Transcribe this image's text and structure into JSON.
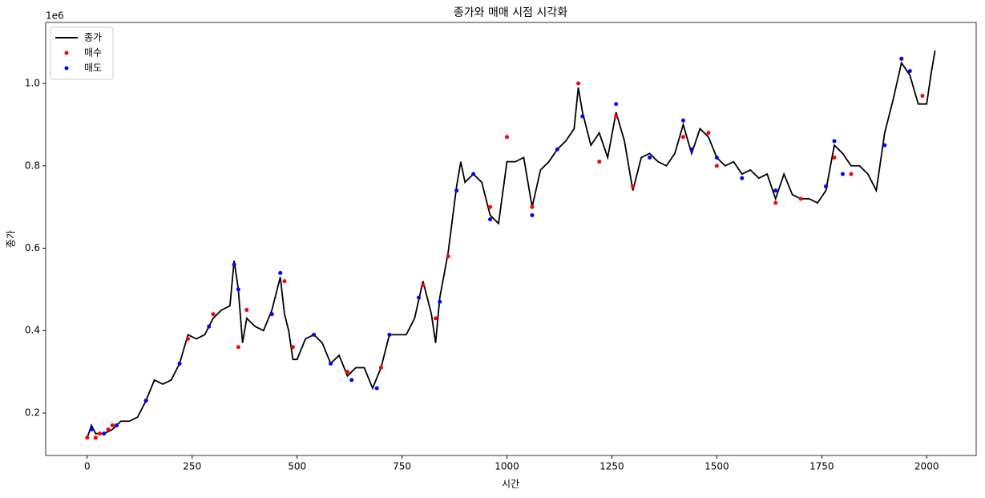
{
  "chart_data": {
    "type": "line",
    "title": "종가와 매매 시점 시각화",
    "xlabel": "시간",
    "ylabel": "종가",
    "y_offset_label": "1e6",
    "x": [
      0,
      10,
      20,
      40,
      60,
      80,
      100,
      120,
      140,
      160,
      180,
      200,
      220,
      240,
      260,
      280,
      300,
      320,
      340,
      350,
      360,
      370,
      380,
      400,
      420,
      440,
      460,
      470,
      480,
      490,
      500,
      520,
      540,
      560,
      580,
      600,
      620,
      640,
      660,
      680,
      700,
      720,
      740,
      760,
      780,
      800,
      820,
      830,
      840,
      860,
      880,
      890,
      900,
      920,
      940,
      960,
      980,
      1000,
      1020,
      1040,
      1060,
      1080,
      1100,
      1120,
      1140,
      1160,
      1170,
      1180,
      1200,
      1220,
      1240,
      1260,
      1280,
      1300,
      1320,
      1340,
      1360,
      1380,
      1400,
      1420,
      1440,
      1460,
      1480,
      1500,
      1520,
      1540,
      1560,
      1580,
      1600,
      1620,
      1640,
      1660,
      1680,
      1700,
      1720,
      1740,
      1760,
      1780,
      1800,
      1820,
      1840,
      1860,
      1880,
      1900,
      1920,
      1940,
      1960,
      1980,
      2000,
      2010,
      2020
    ],
    "series": [
      {
        "name": "종가",
        "color": "#000000",
        "values": [
          0.14,
          0.17,
          0.15,
          0.15,
          0.16,
          0.18,
          0.18,
          0.19,
          0.23,
          0.28,
          0.27,
          0.28,
          0.32,
          0.39,
          0.38,
          0.39,
          0.43,
          0.45,
          0.46,
          0.57,
          0.5,
          0.37,
          0.43,
          0.41,
          0.4,
          0.45,
          0.53,
          0.44,
          0.4,
          0.33,
          0.33,
          0.38,
          0.39,
          0.37,
          0.32,
          0.34,
          0.29,
          0.31,
          0.31,
          0.26,
          0.31,
          0.39,
          0.39,
          0.39,
          0.43,
          0.52,
          0.44,
          0.37,
          0.48,
          0.59,
          0.75,
          0.81,
          0.76,
          0.78,
          0.76,
          0.68,
          0.66,
          0.81,
          0.81,
          0.82,
          0.7,
          0.79,
          0.81,
          0.84,
          0.86,
          0.89,
          0.99,
          0.93,
          0.85,
          0.88,
          0.82,
          0.93,
          0.86,
          0.74,
          0.82,
          0.83,
          0.81,
          0.8,
          0.83,
          0.9,
          0.83,
          0.89,
          0.87,
          0.82,
          0.8,
          0.81,
          0.78,
          0.79,
          0.77,
          0.78,
          0.72,
          0.78,
          0.73,
          0.72,
          0.72,
          0.71,
          0.74,
          0.85,
          0.83,
          0.8,
          0.8,
          0.78,
          0.74,
          0.88,
          0.96,
          1.05,
          1.02,
          0.95,
          0.95,
          1.02,
          1.08
        ]
      }
    ],
    "scatter": [
      {
        "name": "매수",
        "color": "#ff0000",
        "x": [
          0,
          20,
          30,
          50,
          60,
          140,
          240,
          300,
          360,
          380,
          470,
          490,
          620,
          700,
          800,
          830,
          860,
          960,
          1000,
          1060,
          1170,
          1220,
          1260,
          1300,
          1420,
          1480,
          1500,
          1640,
          1700,
          1780,
          1820,
          1940,
          1990
        ],
        "values": [
          0.14,
          0.14,
          0.15,
          0.16,
          0.17,
          0.23,
          0.38,
          0.44,
          0.36,
          0.45,
          0.52,
          0.36,
          0.3,
          0.31,
          0.51,
          0.43,
          0.58,
          0.7,
          0.87,
          0.7,
          1.0,
          0.81,
          0.92,
          0.75,
          0.87,
          0.88,
          0.8,
          0.71,
          0.72,
          0.82,
          0.78,
          1.06,
          0.97
        ]
      },
      {
        "name": "매도",
        "color": "#0000ff",
        "x": [
          10,
          40,
          70,
          140,
          220,
          290,
          350,
          360,
          440,
          460,
          540,
          580,
          630,
          690,
          720,
          790,
          840,
          880,
          920,
          960,
          1060,
          1120,
          1180,
          1260,
          1340,
          1420,
          1440,
          1500,
          1560,
          1640,
          1760,
          1780,
          1800,
          1900,
          1940,
          1960
        ],
        "values": [
          0.16,
          0.15,
          0.17,
          0.23,
          0.32,
          0.41,
          0.56,
          0.5,
          0.44,
          0.54,
          0.39,
          0.32,
          0.28,
          0.26,
          0.39,
          0.48,
          0.47,
          0.74,
          0.78,
          0.67,
          0.68,
          0.84,
          0.92,
          0.95,
          0.82,
          0.91,
          0.84,
          0.82,
          0.77,
          0.74,
          0.75,
          0.86,
          0.78,
          0.85,
          1.06,
          1.03
        ]
      }
    ],
    "xlim": [
      -99,
      2118
    ],
    "ylim": [
      0.0968,
      1.148
    ],
    "xticks": [
      0,
      250,
      500,
      750,
      1000,
      1250,
      1500,
      1750,
      2000
    ],
    "yticks": [
      0.2,
      0.4,
      0.6,
      0.8,
      {
        "value": 1,
        "label": "1.0"
      }
    ],
    "legend": "upper left"
  }
}
